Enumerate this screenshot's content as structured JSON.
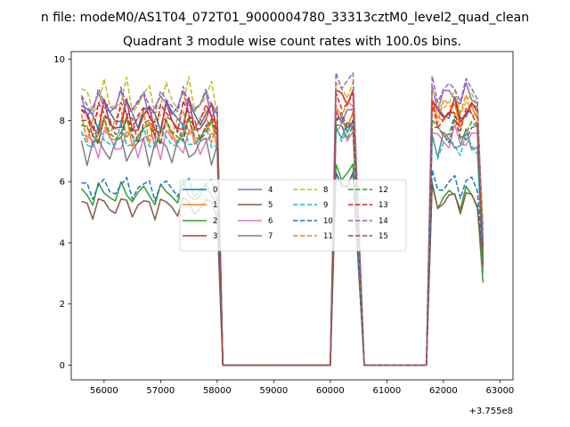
{
  "chart_data": {
    "type": "line",
    "suptitle": "n file: modeM0/AS1T04_072T01_9000004780_33313cztM0_level2_quad_clean",
    "title": "Quadrant 3 module wise count rates with 100.0s bins.",
    "xlabel": "",
    "ylabel": "",
    "x_offset_label": "+3.755e8",
    "xlim": [
      55420,
      63230
    ],
    "ylim": [
      -0.48,
      10.25
    ],
    "x_ticks": [
      56000,
      57000,
      58000,
      59000,
      60000,
      61000,
      62000,
      63000
    ],
    "x_tick_labels": [
      "56000",
      "57000",
      "58000",
      "59000",
      "60000",
      "61000",
      "62000",
      "63000"
    ],
    "y_ticks": [
      0,
      2,
      4,
      6,
      8,
      10
    ],
    "y_tick_labels": [
      "0",
      "2",
      "4",
      "6",
      "8",
      "10"
    ],
    "grid": false,
    "legend_position": "center",
    "legend_columns": 4,
    "segments": [
      {
        "name": "first-orbit",
        "x_start": 55600,
        "x_step": 100,
        "n": 25
      },
      {
        "name": "gap-1",
        "x": [
          58100,
          58200,
          58300,
          59900,
          60000
        ]
      },
      {
        "name": "second-orbit",
        "x_start": 60100,
        "x_step": 100,
        "n": 4
      },
      {
        "name": "gap-2",
        "x": [
          60600,
          60700,
          61600,
          61700
        ]
      },
      {
        "name": "third-orbit",
        "x_start": 61800,
        "x_step": 100,
        "n": 10
      }
    ],
    "series": [
      {
        "name": "0",
        "color": "#1f77b4",
        "dash": "solid",
        "level": 8.2,
        "amp": 0.4,
        "phase": 0.3,
        "second_orbit": 7.9,
        "third_orbit": 8.3,
        "end_value": 3.8
      },
      {
        "name": "1",
        "color": "#ff7f0e",
        "dash": "solid",
        "level": 7.6,
        "amp": 0.4,
        "phase": 1.1,
        "second_orbit": 8.0,
        "third_orbit": 8.2,
        "end_value": 4.4
      },
      {
        "name": "2",
        "color": "#2ca02c",
        "dash": "solid",
        "level": 5.6,
        "amp": 0.3,
        "phase": 2.0,
        "second_orbit": 6.3,
        "third_orbit": 5.5,
        "end_value": 2.7
      },
      {
        "name": "3",
        "color": "#d62728",
        "dash": "solid",
        "level": 8.0,
        "amp": 0.5,
        "phase": 0.7,
        "second_orbit": 8.8,
        "third_orbit": 8.3,
        "end_value": 3.2
      },
      {
        "name": "4",
        "color": "#9467bd",
        "dash": "solid",
        "level": 8.5,
        "amp": 0.35,
        "phase": 2.6,
        "second_orbit": 8.2,
        "third_orbit": 8.8,
        "end_value": 3.9
      },
      {
        "name": "5",
        "color": "#8c564b",
        "dash": "solid",
        "level": 5.2,
        "amp": 0.3,
        "phase": 1.6,
        "second_orbit": 6.0,
        "third_orbit": 5.4,
        "end_value": 3.3
      },
      {
        "name": "6",
        "color": "#e377c2",
        "dash": "solid",
        "level": 7.3,
        "amp": 0.4,
        "phase": 0.1,
        "second_orbit": 7.6,
        "third_orbit": 7.4,
        "end_value": 3.6
      },
      {
        "name": "7",
        "color": "#7f7f7f",
        "dash": "solid",
        "level": 7.1,
        "amp": 0.4,
        "phase": 3.0,
        "second_orbit": 7.7,
        "third_orbit": 7.3,
        "end_value": 3.0
      },
      {
        "name": "8",
        "color": "#bcbd22",
        "dash": "dashed",
        "level": 8.7,
        "amp": 0.5,
        "phase": 0.9,
        "second_orbit": 9.0,
        "third_orbit": 8.6,
        "end_value": 4.2
      },
      {
        "name": "9",
        "color": "#17becf",
        "dash": "dashed",
        "level": 7.4,
        "amp": 0.35,
        "phase": 2.3,
        "second_orbit": 7.6,
        "third_orbit": 7.2,
        "end_value": 3.7
      },
      {
        "name": "10",
        "color": "#1f77b4",
        "dash": "dashed",
        "level": 5.8,
        "amp": 0.3,
        "phase": 1.3,
        "second_orbit": 6.0,
        "third_orbit": 5.9,
        "end_value": 3.4
      },
      {
        "name": "11",
        "color": "#ff7f0e",
        "dash": "dashed",
        "level": 7.9,
        "amp": 0.45,
        "phase": 2.9,
        "second_orbit": 8.4,
        "third_orbit": 8.4,
        "end_value": 4.6
      },
      {
        "name": "12",
        "color": "#2ca02c",
        "dash": "dashed",
        "level": 7.6,
        "amp": 0.35,
        "phase": 0.5,
        "second_orbit": 7.7,
        "third_orbit": 7.7,
        "end_value": 3.5
      },
      {
        "name": "13",
        "color": "#d62728",
        "dash": "dashed",
        "level": 8.1,
        "amp": 0.45,
        "phase": 1.8,
        "second_orbit": 8.6,
        "third_orbit": 8.1,
        "end_value": 3.9
      },
      {
        "name": "14",
        "color": "#9467bd",
        "dash": "dashed",
        "level": 8.6,
        "amp": 0.35,
        "phase": 2.1,
        "second_orbit": 9.3,
        "third_orbit": 9.0,
        "end_value": 4.0
      },
      {
        "name": "15",
        "color": "#8c564b",
        "dash": "dashed",
        "level": 7.8,
        "amp": 0.4,
        "phase": 0.0,
        "second_orbit": 8.0,
        "third_orbit": 7.6,
        "end_value": 3.3
      }
    ]
  }
}
